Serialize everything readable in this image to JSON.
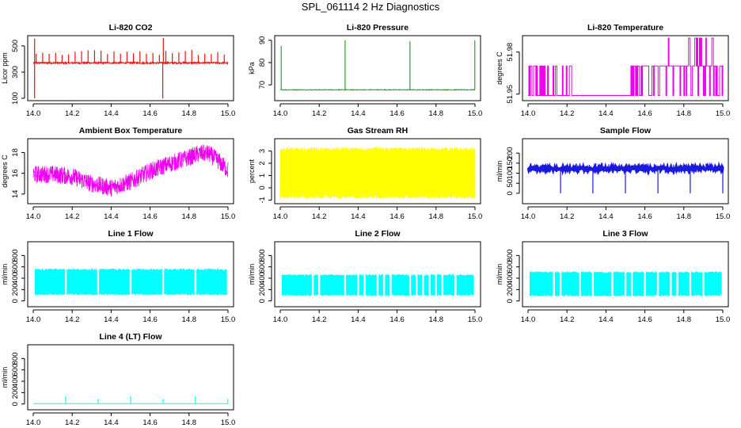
{
  "figure_title": "SPL_061114  2 Hz Diagnostics",
  "chart_data": [
    {
      "type": "line",
      "title": "Li-820 CO2",
      "xlabel": "",
      "ylabel": "Licor ppm",
      "color": "#e8140a",
      "xlim": [
        14.0,
        15.0
      ],
      "ylim": [
        100,
        560
      ],
      "x_ticks": [
        14.0,
        14.2,
        14.4,
        14.6,
        14.8,
        15.0
      ],
      "x_tick_labels": [
        "14.0",
        "14.2",
        "14.4",
        "14.6",
        "14.8",
        "15.0"
      ],
      "y_ticks": [
        100,
        300,
        500
      ],
      "y_tick_labels": [
        "100",
        "300",
        "500"
      ],
      "baseline": 370,
      "noise": 12,
      "spike_every": 0.0333,
      "spike_value": 470,
      "extra_spikes": [
        [
          14.007,
          555
        ],
        [
          14.668,
          560
        ],
        [
          14.665,
          100
        ],
        [
          14.007,
          100
        ]
      ]
    },
    {
      "type": "line",
      "title": "Li-820 Pressure",
      "xlabel": "",
      "ylabel": "kPa",
      "color": "#22aa22",
      "xlim": [
        14.0,
        15.0
      ],
      "ylim": [
        64,
        91
      ],
      "x_ticks": [
        14.0,
        14.2,
        14.4,
        14.6,
        14.8,
        15.0
      ],
      "x_tick_labels": [
        "14.0",
        "14.2",
        "14.4",
        "14.6",
        "14.8",
        "15.0"
      ],
      "y_ticks": [
        70,
        80,
        90
      ],
      "y_tick_labels": [
        "70",
        "80",
        "90"
      ],
      "baseline": 67.8,
      "noise": 0.3,
      "extra_spikes": [
        [
          14.005,
          87.5
        ],
        [
          14.333,
          90
        ],
        [
          14.666,
          89.5
        ],
        [
          14.999,
          90
        ]
      ]
    },
    {
      "type": "step",
      "title": "Li-820 Temperature",
      "xlabel": "",
      "ylabel": "degrees C",
      "color": "#ee00ee",
      "xlim": [
        14.0,
        15.0
      ],
      "ylim": [
        51.947,
        51.99
      ],
      "x_ticks": [
        14.0,
        14.2,
        14.4,
        14.6,
        14.8,
        15.0
      ],
      "x_tick_labels": [
        "14.0",
        "14.2",
        "14.4",
        "14.6",
        "14.8",
        "15.0"
      ],
      "y_ticks": [
        51.95,
        51.98
      ],
      "y_tick_labels": [
        "51.95",
        "51.98"
      ],
      "levels": [
        51.949,
        51.97,
        51.99
      ]
    },
    {
      "type": "line",
      "title": "Ambient Box Temperature",
      "xlabel": "",
      "ylabel": "degrees C",
      "color": "#ee00ee",
      "xlim": [
        14.0,
        15.0
      ],
      "ylim": [
        13.3,
        19.1
      ],
      "x_ticks": [
        14.0,
        14.2,
        14.4,
        14.6,
        14.8,
        15.0
      ],
      "x_tick_labels": [
        "14.0",
        "14.2",
        "14.4",
        "14.6",
        "14.8",
        "15.0"
      ],
      "y_ticks": [
        14,
        16,
        18
      ],
      "y_tick_labels": [
        "14",
        "16",
        "18"
      ],
      "trend_x": [
        14.0,
        14.1,
        14.2,
        14.3,
        14.4,
        14.5,
        14.6,
        14.7,
        14.8,
        14.85,
        14.9,
        14.95,
        15.0
      ],
      "trend_y": [
        15.9,
        15.9,
        15.7,
        15.0,
        14.6,
        15.2,
        16.2,
        16.9,
        17.5,
        17.9,
        17.9,
        17.2,
        16.3
      ],
      "band": 1.7
    },
    {
      "type": "line",
      "title": "Gas Stream RH",
      "xlabel": "",
      "ylabel": "percent",
      "color": "#ffff00",
      "xlim": [
        14.0,
        15.0
      ],
      "ylim": [
        -1.1,
        3.8
      ],
      "x_ticks": [
        14.0,
        14.2,
        14.4,
        14.6,
        14.8,
        15.0
      ],
      "x_tick_labels": [
        "14.0",
        "14.2",
        "14.4",
        "14.6",
        "14.8",
        "15.0"
      ],
      "y_ticks": [
        -1,
        0,
        1,
        2,
        3
      ],
      "y_tick_labels": [
        "-1",
        "0",
        "1",
        "2",
        "3"
      ],
      "band_low": -0.9,
      "band_high": 3.3
    },
    {
      "type": "line",
      "title": "Sample Flow",
      "xlabel": "",
      "ylabel": "ml/min",
      "color": "#1a1adc",
      "xlim": [
        14.0,
        15.0
      ],
      "ylim": [
        -40,
        260
      ],
      "x_ticks": [
        14.0,
        14.2,
        14.4,
        14.6,
        14.8,
        15.0
      ],
      "x_tick_labels": [
        "14.0",
        "14.2",
        "14.4",
        "14.6",
        "14.8",
        "15.0"
      ],
      "y_ticks": [
        0,
        50,
        100,
        150,
        200
      ],
      "y_tick_labels": [
        "0",
        "50",
        "100",
        "150",
        "200"
      ],
      "baseline": 123,
      "band": 12,
      "spike_every": 0.0333,
      "spike_value": 150,
      "dips": [
        14.167,
        14.333,
        14.5,
        14.667,
        14.833,
        15.0
      ]
    },
    {
      "type": "line",
      "title": "Line 1 Flow",
      "xlabel": "",
      "ylabel": "ml/min",
      "color": "#00ffff",
      "xlim": [
        14.0,
        15.0
      ],
      "ylim": [
        -60,
        1000
      ],
      "x_ticks": [
        14.0,
        14.2,
        14.4,
        14.6,
        14.8,
        15.0
      ],
      "x_tick_labels": [
        "14.0",
        "14.2",
        "14.4",
        "14.6",
        "14.8",
        "15.0"
      ],
      "y_ticks": [
        0,
        200,
        400,
        600,
        800
      ],
      "y_tick_labels": [
        "0",
        "200",
        "400",
        "600",
        "800"
      ],
      "band_low": 100,
      "band_high": 570,
      "gaps": [
        14.003,
        14.167,
        14.333,
        14.5,
        14.667,
        14.833,
        14.999
      ]
    },
    {
      "type": "line",
      "title": "Line 2 Flow",
      "xlabel": "",
      "ylabel": "ml/min",
      "color": "#00ffff",
      "xlim": [
        14.0,
        15.0
      ],
      "ylim": [
        -60,
        1000
      ],
      "x_ticks": [
        14.0,
        14.2,
        14.4,
        14.6,
        14.8,
        15.0
      ],
      "x_tick_labels": [
        "14.0",
        "14.2",
        "14.4",
        "14.6",
        "14.8",
        "15.0"
      ],
      "y_ticks": [
        0,
        200,
        400,
        600,
        800
      ],
      "y_tick_labels": [
        "0",
        "200",
        "400",
        "600",
        "800"
      ],
      "band_low": 90,
      "band_high": 470,
      "gaps": [
        14.003,
        14.167,
        14.2,
        14.333,
        14.4,
        14.433,
        14.5,
        14.533,
        14.567,
        14.667,
        14.7,
        14.733,
        14.767,
        14.8,
        14.833,
        14.9,
        14.999
      ]
    },
    {
      "type": "line",
      "title": "Line 3 Flow",
      "xlabel": "",
      "ylabel": "ml/min",
      "color": "#00ffff",
      "xlim": [
        14.0,
        15.0
      ],
      "ylim": [
        -60,
        1000
      ],
      "x_ticks": [
        14.0,
        14.2,
        14.4,
        14.6,
        14.8,
        15.0
      ],
      "x_tick_labels": [
        "14.0",
        "14.2",
        "14.4",
        "14.6",
        "14.8",
        "15.0"
      ],
      "y_ticks": [
        0,
        200,
        400,
        600,
        800
      ],
      "y_tick_labels": [
        "0",
        "200",
        "400",
        "600",
        "800"
      ],
      "band_low": 80,
      "band_high": 520,
      "gaps": [
        14.003,
        14.133,
        14.167,
        14.267,
        14.333,
        14.433,
        14.5,
        14.533,
        14.6,
        14.667,
        14.733,
        14.767,
        14.833,
        14.9,
        14.999
      ]
    },
    {
      "type": "line",
      "title": "Line 4 (LT) Flow",
      "xlabel": "",
      "ylabel": "ml/min",
      "color": "#00ffff",
      "xlim": [
        14.0,
        15.0
      ],
      "ylim": [
        -60,
        1000
      ],
      "x_ticks": [
        14.0,
        14.2,
        14.4,
        14.6,
        14.8,
        15.0
      ],
      "x_tick_labels": [
        "14.0",
        "14.2",
        "14.4",
        "14.6",
        "14.8",
        "15.0"
      ],
      "y_ticks": [
        0,
        200,
        400,
        600,
        800
      ],
      "y_tick_labels": [
        "0",
        "200",
        "400",
        "600",
        "800"
      ],
      "baseline": 5,
      "extra_spikes": [
        [
          14.167,
          140
        ],
        [
          14.333,
          90
        ],
        [
          14.5,
          140
        ],
        [
          14.667,
          90
        ],
        [
          14.833,
          140
        ],
        [
          14.999,
          90
        ]
      ]
    }
  ]
}
